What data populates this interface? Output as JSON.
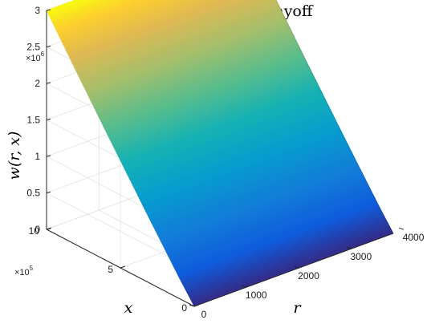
{
  "chart_data": {
    "type": "surface",
    "title": "Firm’s equilibrum payoff",
    "xlabel": "r",
    "ylabel": "x",
    "zlabel": "w(r, x)",
    "r_range": [
      0,
      3800
    ],
    "x_range": [
      0,
      1000000
    ],
    "z_range": [
      0,
      3000000
    ],
    "r_ticks": [
      {
        "value": 0,
        "label": "0"
      },
      {
        "value": 1000,
        "label": "1000"
      },
      {
        "value": 2000,
        "label": "2000"
      },
      {
        "value": 3000,
        "label": "3000"
      },
      {
        "value": 4000,
        "label": "4000"
      }
    ],
    "x_ticks": [
      {
        "value": 0,
        "label": "0"
      },
      {
        "value": 500000,
        "label": "5"
      },
      {
        "value": 1000000,
        "label": "10"
      }
    ],
    "z_ticks": [
      {
        "value": 0,
        "label": "0"
      },
      {
        "value": 500000,
        "label": "0.5"
      },
      {
        "value": 1000000,
        "label": "1"
      },
      {
        "value": 1500000,
        "label": "1.5"
      },
      {
        "value": 2000000,
        "label": "2"
      },
      {
        "value": 2500000,
        "label": "2.5"
      },
      {
        "value": 3000000,
        "label": "3"
      }
    ],
    "x_multiplier_base": "×10",
    "x_multiplier_exp": "5",
    "z_multiplier_base": "×10",
    "z_multiplier_exp": "6",
    "surface_profile": {
      "x": [
        0,
        100000,
        200000,
        300000,
        400000,
        500000,
        600000,
        700000,
        800000,
        900000,
        1000000
      ],
      "w": [
        0,
        280000,
        575000,
        870000,
        1170000,
        1470000,
        1770000,
        2075000,
        2380000,
        2690000,
        3000000
      ]
    },
    "r_dependence": "approximately constant in r",
    "colormap": "parula",
    "grid": true
  }
}
